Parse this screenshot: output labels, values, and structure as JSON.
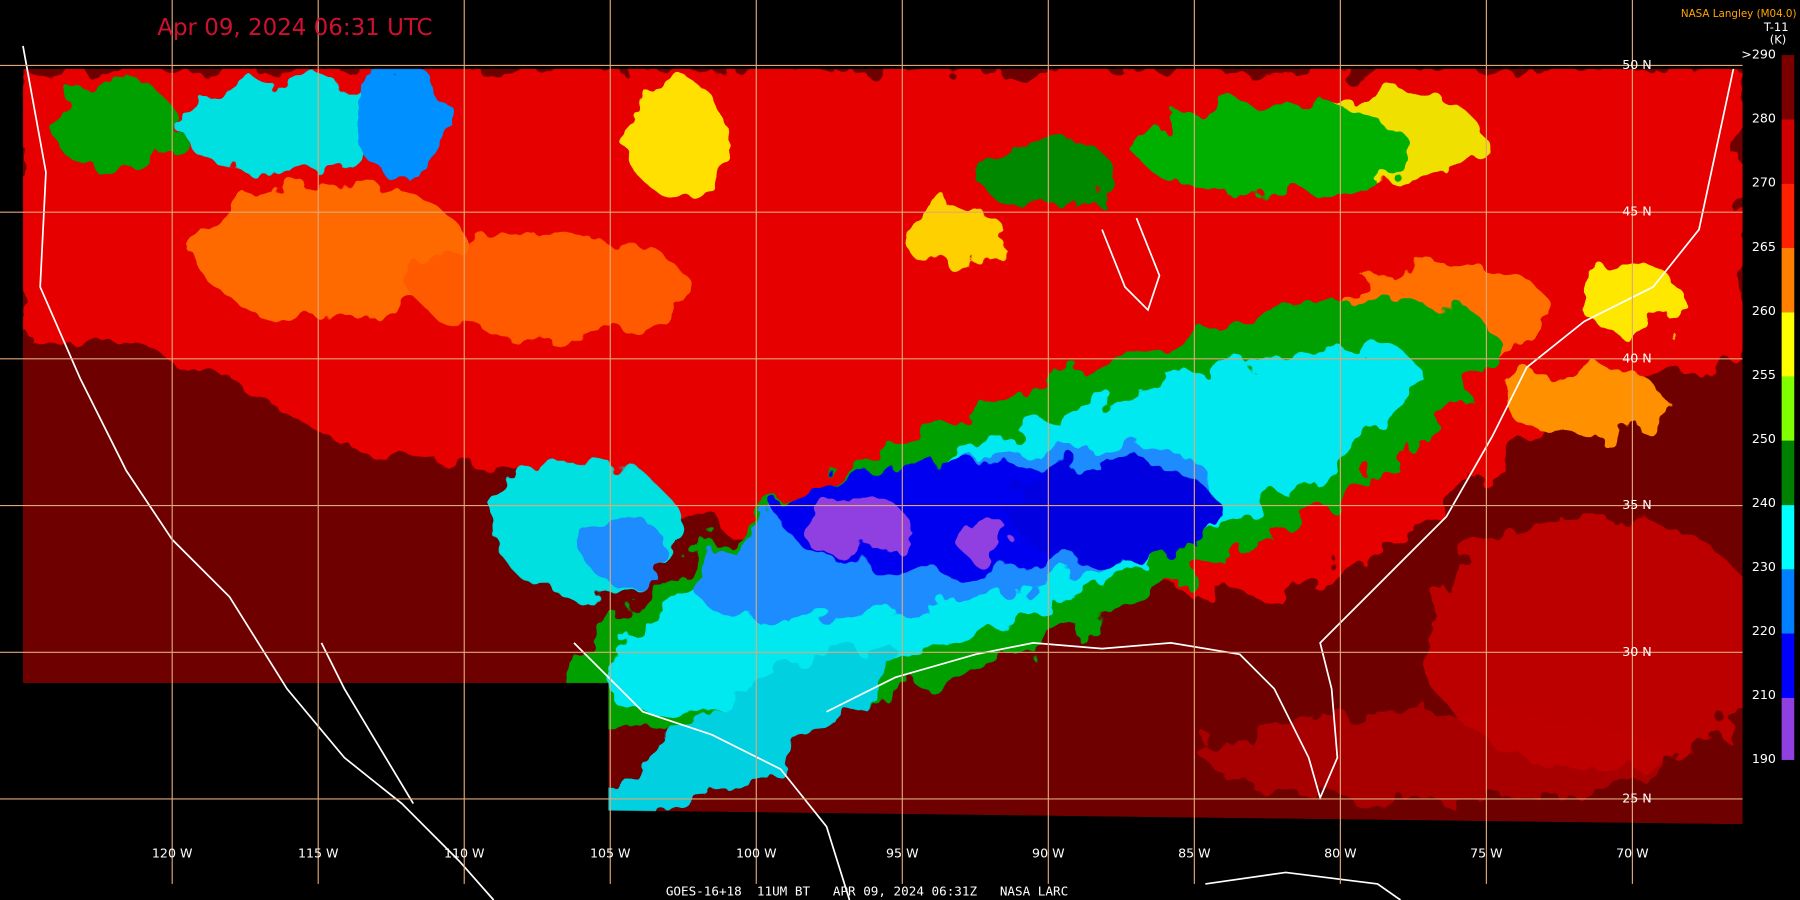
{
  "header": {
    "timestamp": "Apr 09, 2024 06:31 UTC",
    "credit": "NASA Langley (M04.0)"
  },
  "colorbar": {
    "channel": "T-11",
    "units": "(K)",
    "labels": [
      ">290",
      "280",
      "270",
      "265",
      "260",
      "255",
      "250",
      "240",
      "230",
      "220",
      "210",
      "190"
    ]
  },
  "latitude_labels": [
    "50 N",
    "45 N",
    "40 N",
    "35 N",
    "30 N",
    "25 N"
  ],
  "longitude_labels": [
    "120 W",
    "115 W",
    "110 W",
    "105 W",
    "100 W",
    "95 W",
    "90 W",
    "85 W",
    "80 W",
    "75 W",
    "70 W"
  ],
  "footer": "GOES-16+18  11UM BT   APR 09, 2024 06:31Z   NASA LARC"
}
